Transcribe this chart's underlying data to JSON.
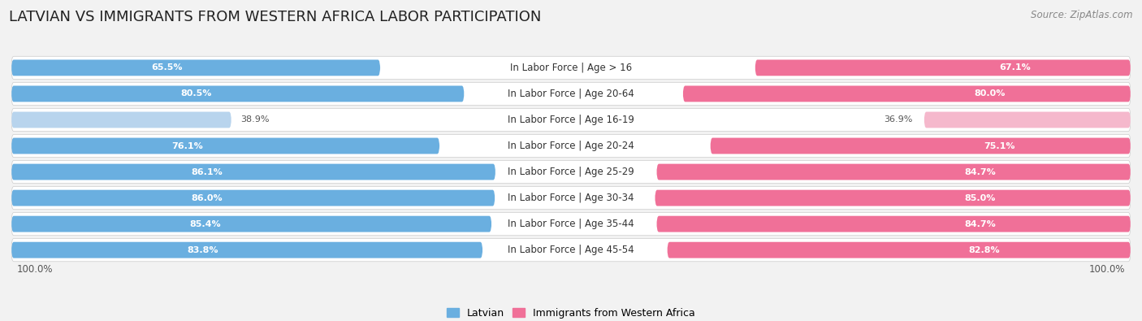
{
  "title": "LATVIAN VS IMMIGRANTS FROM WESTERN AFRICA LABOR PARTICIPATION",
  "source": "Source: ZipAtlas.com",
  "categories": [
    "In Labor Force | Age > 16",
    "In Labor Force | Age 20-64",
    "In Labor Force | Age 16-19",
    "In Labor Force | Age 20-24",
    "In Labor Force | Age 25-29",
    "In Labor Force | Age 30-34",
    "In Labor Force | Age 35-44",
    "In Labor Force | Age 45-54"
  ],
  "latvian_values": [
    65.5,
    80.5,
    38.9,
    76.1,
    86.1,
    86.0,
    85.4,
    83.8
  ],
  "immigrant_values": [
    67.1,
    80.0,
    36.9,
    75.1,
    84.7,
    85.0,
    84.7,
    82.8
  ],
  "latvian_color_dark": "#6aafe0",
  "latvian_color_light": "#b8d4ed",
  "immigrant_color_dark": "#f07098",
  "immigrant_color_light": "#f5b8cc",
  "row_bg_color": "#e8e8e8",
  "outer_bg_color": "#f2f2f2",
  "pill_bg": "#f7f7f7",
  "legend_latvian": "Latvian",
  "legend_immigrant": "Immigrants from Western Africa",
  "title_fontsize": 13,
  "label_fontsize": 8.5,
  "value_fontsize": 8.0,
  "source_fontsize": 8.5,
  "threshold": 60,
  "max_value": 100.0
}
